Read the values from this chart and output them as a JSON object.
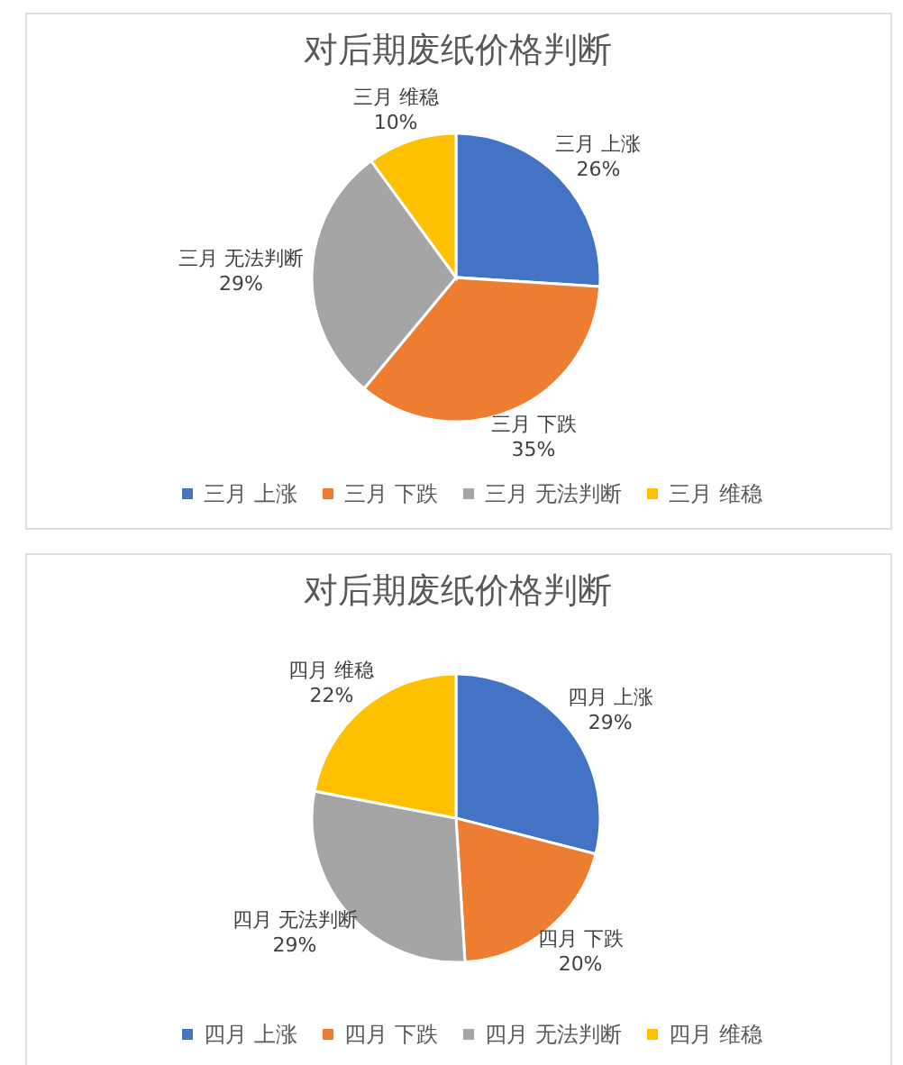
{
  "chart_data": [
    {
      "type": "pie",
      "title": "对后期废纸价格判断",
      "categories": [
        "三月 上涨",
        "三月 下跌",
        "三月 无法判断",
        "三月 维稳"
      ],
      "values": [
        26,
        35,
        29,
        10
      ],
      "colors": [
        "#4472c4",
        "#ed7d31",
        "#a5a5a5",
        "#ffc000"
      ],
      "value_labels": [
        "26%",
        "35%",
        "29%",
        "10%"
      ],
      "legend": "bottom"
    },
    {
      "type": "pie",
      "title": "对后期废纸价格判断",
      "categories": [
        "四月 上涨",
        "四月 下跌",
        "四月 无法判断",
        "四月 维稳"
      ],
      "values": [
        29,
        20,
        29,
        22
      ],
      "colors": [
        "#4472c4",
        "#ed7d31",
        "#a5a5a5",
        "#ffc000"
      ],
      "value_labels": [
        "29%",
        "20%",
        "29%",
        "22%"
      ],
      "legend": "bottom"
    }
  ]
}
